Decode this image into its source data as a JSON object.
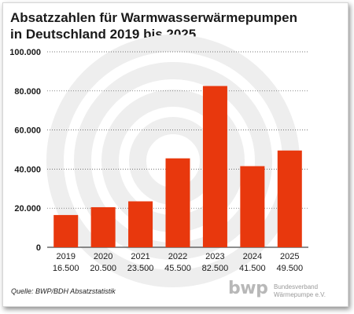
{
  "title_line1": "Absatzzahlen für Warmwasserwärmepumpen",
  "title_line2": "in Deutschland 2019 bis 2025",
  "source": "Quelle: BWP/BDH Absatzstatistik",
  "logo": {
    "mark": "bwp",
    "line1": "Bundesverband",
    "line2": "Wärmepumpe e.V."
  },
  "colors": {
    "bar": "#e8380d",
    "grid": "#4a4a4a",
    "watermark": "#eeeeee"
  },
  "chart_data": {
    "type": "bar",
    "title": "Absatzzahlen für Warmwasserwärmepumpen in Deutschland 2019 bis 2025",
    "xlabel": "",
    "ylabel": "",
    "ylim": [
      0,
      100000
    ],
    "yticks": [
      0,
      20000,
      40000,
      60000,
      80000,
      100000
    ],
    "ytick_labels": [
      "0",
      "20.000",
      "40.000",
      "60.000",
      "80.000",
      "100.000"
    ],
    "grid": "horizontal",
    "categories": [
      "2019",
      "2020",
      "2021",
      "2022",
      "2023",
      "2024",
      "2025"
    ],
    "values": [
      16500,
      20500,
      23500,
      45500,
      82500,
      41500,
      49500
    ],
    "value_labels": [
      "16.500",
      "20.500",
      "23.500",
      "45.500",
      "82.500",
      "41.500",
      "49.500"
    ]
  }
}
